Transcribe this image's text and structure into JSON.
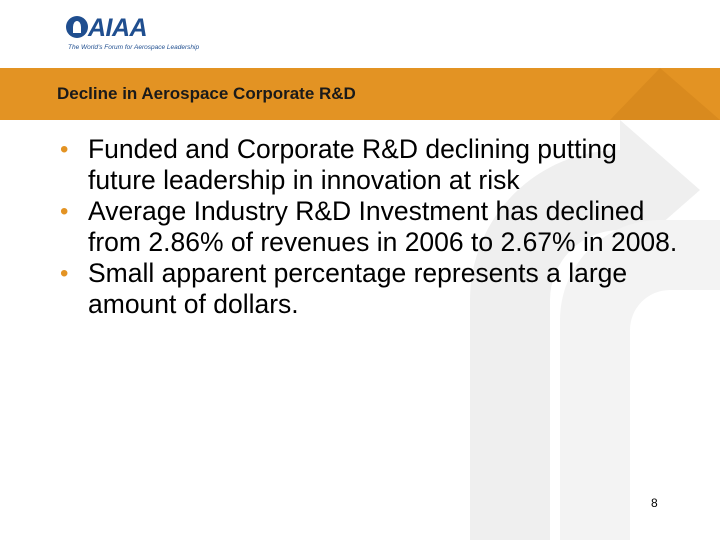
{
  "logo": {
    "name": "AIAA",
    "tagline": "The World's Forum for Aerospace Leadership"
  },
  "slide": {
    "title": "Decline in Aerospace Corporate R&D",
    "bullets": [
      "Funded and Corporate R&D declining putting future leadership in innovation at risk",
      "Average Industry R&D Investment has declined from 2.86% of revenues in 2006 to 2.67% in 2008.",
      "Small apparent percentage represents a large amount of dollars."
    ],
    "page_number": "8"
  },
  "colors": {
    "accent": "#e39323",
    "logo_blue": "#1f4e8f",
    "watermark": "#efefef"
  }
}
